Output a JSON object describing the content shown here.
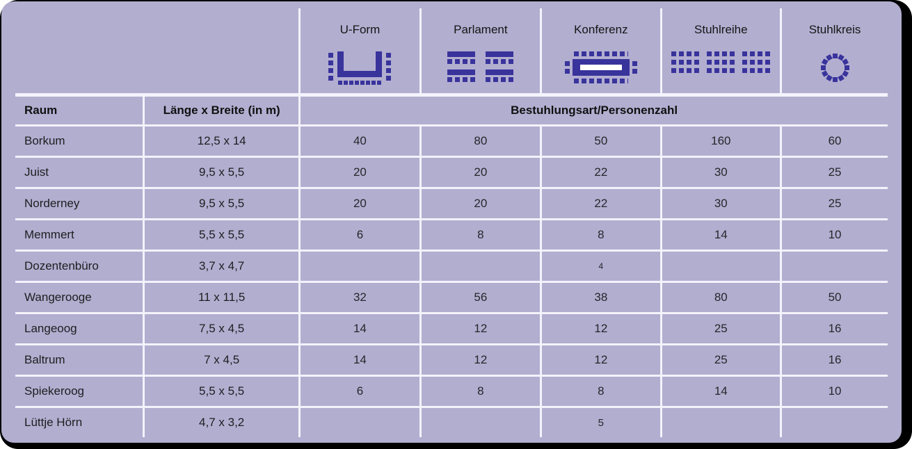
{
  "table": {
    "row_header": "Raum",
    "size_header": "Länge x Breite (in m)",
    "span_header": "Bestuhlungsart/Personenzahl",
    "seating_columns": [
      {
        "label": "U-Form",
        "icon": "u-form-seating-icon"
      },
      {
        "label": "Parlament",
        "icon": "parlament-seating-icon"
      },
      {
        "label": "Konferenz",
        "icon": "konferenz-seating-icon"
      },
      {
        "label": "Stuhlreihe",
        "icon": "stuhlreihe-seating-icon"
      },
      {
        "label": "Stuhlkreis",
        "icon": "stuhlkreis-seating-icon"
      }
    ],
    "rows": [
      {
        "raum": "Borkum",
        "size": "12,5 x 14",
        "values": [
          "40",
          "80",
          "50",
          "160",
          "60"
        ],
        "value_size": "normal"
      },
      {
        "raum": "Juist",
        "size": "9,5 x 5,5",
        "values": [
          "20",
          "20",
          "22",
          "30",
          "25"
        ],
        "value_size": "normal"
      },
      {
        "raum": "Norderney",
        "size": "9,5 x 5,5",
        "values": [
          "20",
          "20",
          "22",
          "30",
          "25"
        ],
        "value_size": "normal"
      },
      {
        "raum": "Memmert",
        "size": "5,5 x 5,5",
        "values": [
          "6",
          "8",
          "8",
          "14",
          "10"
        ],
        "value_size": "normal"
      },
      {
        "raum": "Dozentenbüro",
        "size": "3,7 x 4,7",
        "values": [
          "",
          "",
          "4",
          "",
          ""
        ],
        "value_size": "xs"
      },
      {
        "raum": "Wangerooge",
        "size": "11 x 11,5",
        "values": [
          "32",
          "56",
          "38",
          "80",
          "50"
        ],
        "value_size": "normal"
      },
      {
        "raum": "Langeoog",
        "size": "7,5 x 4,5",
        "values": [
          "14",
          "12",
          "12",
          "25",
          "16"
        ],
        "value_size": "normal"
      },
      {
        "raum": "Baltrum",
        "size": "7 x 4,5",
        "values": [
          "14",
          "12",
          "12",
          "25",
          "16"
        ],
        "value_size": "normal"
      },
      {
        "raum": "Spiekeroog",
        "size": "5,5 x 5,5",
        "values": [
          "6",
          "8",
          "8",
          "14",
          "10"
        ],
        "value_size": "normal"
      },
      {
        "raum": "Lüttje Hörn",
        "size": "4,7 x 3,2",
        "values": [
          "",
          "",
          "5",
          "",
          ""
        ],
        "value_size": "sm"
      }
    ]
  },
  "colors": {
    "background_lavender": "#b2aed0",
    "grid_line": "#f4f2fb",
    "icon_navy": "#39339c",
    "outer_frame": "#000000"
  }
}
